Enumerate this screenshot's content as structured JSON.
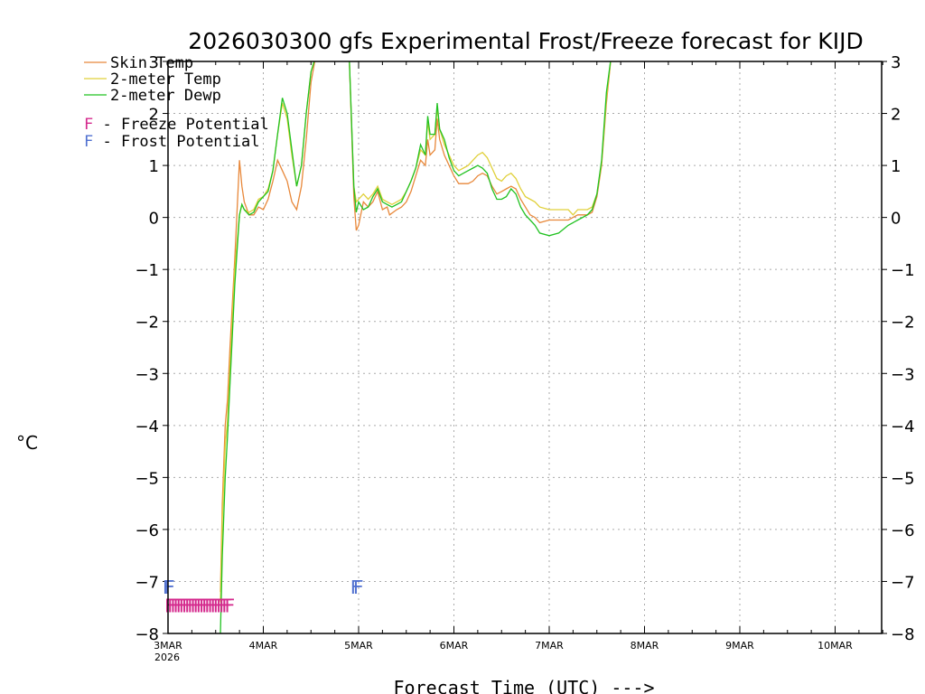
{
  "chart_data": {
    "type": "line",
    "title": "2026030300 gfs Experimental Frost/Freeze forecast for KIJD",
    "ylabel": "°C",
    "xlabel": "Forecast Time (UTC) --->",
    "ylim": [
      -8,
      3
    ],
    "yticks": [
      "−8",
      "−7",
      "−6",
      "−5",
      "−4",
      "−3",
      "−2",
      "−1",
      "0",
      "1",
      "2",
      "3"
    ],
    "xlim_days": [
      0,
      7.5
    ],
    "xtick_labels": [
      "3MAR",
      "4MAR",
      "5MAR",
      "6MAR",
      "7MAR",
      "8MAR",
      "9MAR",
      "10MAR"
    ],
    "x_year_label": "2026",
    "grid": true,
    "series": [
      {
        "name": "Skin Temp",
        "color": "#e8883a",
        "points": [
          [
            0.55,
            -7.2
          ],
          [
            0.57,
            -5.5
          ],
          [
            0.6,
            -4.0
          ],
          [
            0.625,
            -3.5
          ],
          [
            0.65,
            -2.5
          ],
          [
            0.7,
            -0.8
          ],
          [
            0.75,
            1.1
          ],
          [
            0.775,
            0.6
          ],
          [
            0.8,
            0.3
          ],
          [
            0.85,
            0.05
          ],
          [
            0.9,
            0.05
          ],
          [
            0.95,
            0.2
          ],
          [
            1.0,
            0.15
          ],
          [
            1.05,
            0.35
          ],
          [
            1.1,
            0.7
          ],
          [
            1.15,
            1.1
          ],
          [
            1.2,
            0.9
          ],
          [
            1.25,
            0.7
          ],
          [
            1.3,
            0.3
          ],
          [
            1.35,
            0.15
          ],
          [
            1.4,
            0.6
          ],
          [
            1.45,
            1.5
          ],
          [
            1.5,
            2.6
          ],
          [
            1.55,
            3.1
          ],
          [
            1.9,
            3.2
          ],
          [
            1.95,
            0.4
          ],
          [
            1.975,
            -0.25
          ],
          [
            2.0,
            -0.15
          ],
          [
            2.05,
            0.3
          ],
          [
            2.1,
            0.2
          ],
          [
            2.15,
            0.3
          ],
          [
            2.2,
            0.5
          ],
          [
            2.25,
            0.15
          ],
          [
            2.3,
            0.2
          ],
          [
            2.325,
            0.05
          ],
          [
            2.4,
            0.15
          ],
          [
            2.45,
            0.2
          ],
          [
            2.5,
            0.3
          ],
          [
            2.55,
            0.5
          ],
          [
            2.6,
            0.8
          ],
          [
            2.65,
            1.1
          ],
          [
            2.7,
            1.0
          ],
          [
            2.725,
            1.5
          ],
          [
            2.75,
            1.2
          ],
          [
            2.8,
            1.3
          ],
          [
            2.825,
            1.9
          ],
          [
            2.85,
            1.5
          ],
          [
            2.9,
            1.2
          ],
          [
            2.95,
            1.0
          ],
          [
            3.0,
            0.8
          ],
          [
            3.05,
            0.65
          ],
          [
            3.1,
            0.65
          ],
          [
            3.15,
            0.65
          ],
          [
            3.2,
            0.7
          ],
          [
            3.25,
            0.8
          ],
          [
            3.3,
            0.85
          ],
          [
            3.35,
            0.8
          ],
          [
            3.4,
            0.6
          ],
          [
            3.45,
            0.45
          ],
          [
            3.5,
            0.5
          ],
          [
            3.55,
            0.55
          ],
          [
            3.6,
            0.6
          ],
          [
            3.65,
            0.55
          ],
          [
            3.7,
            0.35
          ],
          [
            3.75,
            0.2
          ],
          [
            3.8,
            0.05
          ],
          [
            3.85,
            0.0
          ],
          [
            3.9,
            -0.1
          ],
          [
            4.0,
            -0.05
          ],
          [
            4.1,
            -0.05
          ],
          [
            4.2,
            -0.05
          ],
          [
            4.25,
            0.0
          ],
          [
            4.3,
            0.05
          ],
          [
            4.4,
            0.05
          ],
          [
            4.45,
            0.1
          ],
          [
            4.5,
            0.4
          ],
          [
            4.55,
            1.0
          ],
          [
            4.6,
            2.2
          ],
          [
            4.65,
            3.1
          ]
        ]
      },
      {
        "name": "2-meter Temp",
        "color": "#e0d03a",
        "points": [
          [
            0.55,
            -7.4
          ],
          [
            0.57,
            -5.8
          ],
          [
            0.6,
            -4.4
          ],
          [
            0.625,
            -3.9
          ],
          [
            0.65,
            -2.9
          ],
          [
            0.7,
            -1.0
          ],
          [
            0.75,
            0.05
          ],
          [
            0.775,
            0.25
          ],
          [
            0.8,
            0.15
          ],
          [
            0.85,
            0.1
          ],
          [
            0.9,
            0.15
          ],
          [
            0.95,
            0.35
          ],
          [
            1.0,
            0.4
          ],
          [
            1.05,
            0.55
          ],
          [
            1.1,
            0.9
          ],
          [
            1.15,
            1.6
          ],
          [
            1.2,
            2.2
          ],
          [
            1.25,
            1.9
          ],
          [
            1.3,
            1.2
          ],
          [
            1.35,
            0.6
          ],
          [
            1.4,
            1.0
          ],
          [
            1.45,
            2.0
          ],
          [
            1.5,
            2.8
          ],
          [
            1.55,
            3.1
          ],
          [
            1.9,
            3.2
          ],
          [
            1.95,
            0.6
          ],
          [
            1.975,
            0.3
          ],
          [
            2.0,
            0.35
          ],
          [
            2.05,
            0.45
          ],
          [
            2.1,
            0.35
          ],
          [
            2.15,
            0.45
          ],
          [
            2.2,
            0.6
          ],
          [
            2.25,
            0.35
          ],
          [
            2.3,
            0.3
          ],
          [
            2.35,
            0.25
          ],
          [
            2.4,
            0.3
          ],
          [
            2.45,
            0.35
          ],
          [
            2.5,
            0.5
          ],
          [
            2.55,
            0.7
          ],
          [
            2.6,
            0.95
          ],
          [
            2.65,
            1.3
          ],
          [
            2.7,
            1.2
          ],
          [
            2.725,
            1.85
          ],
          [
            2.75,
            1.5
          ],
          [
            2.8,
            1.6
          ],
          [
            2.825,
            2.1
          ],
          [
            2.85,
            1.7
          ],
          [
            2.9,
            1.4
          ],
          [
            2.95,
            1.2
          ],
          [
            3.0,
            1.0
          ],
          [
            3.05,
            0.9
          ],
          [
            3.1,
            0.95
          ],
          [
            3.15,
            1.0
          ],
          [
            3.2,
            1.1
          ],
          [
            3.25,
            1.2
          ],
          [
            3.3,
            1.25
          ],
          [
            3.35,
            1.15
          ],
          [
            3.4,
            0.95
          ],
          [
            3.45,
            0.75
          ],
          [
            3.5,
            0.7
          ],
          [
            3.55,
            0.8
          ],
          [
            3.6,
            0.85
          ],
          [
            3.65,
            0.75
          ],
          [
            3.7,
            0.55
          ],
          [
            3.75,
            0.4
          ],
          [
            3.8,
            0.35
          ],
          [
            3.85,
            0.3
          ],
          [
            3.9,
            0.2
          ],
          [
            4.0,
            0.15
          ],
          [
            4.1,
            0.15
          ],
          [
            4.2,
            0.15
          ],
          [
            4.25,
            0.05
          ],
          [
            4.3,
            0.15
          ],
          [
            4.4,
            0.15
          ],
          [
            4.45,
            0.2
          ],
          [
            4.5,
            0.45
          ],
          [
            4.55,
            1.05
          ],
          [
            4.6,
            2.3
          ],
          [
            4.65,
            3.1
          ]
        ]
      },
      {
        "name": "2-meter Dewp",
        "color": "#22c222",
        "points": [
          [
            0.55,
            -8.0
          ],
          [
            0.57,
            -6.5
          ],
          [
            0.6,
            -5.0
          ],
          [
            0.625,
            -4.2
          ],
          [
            0.65,
            -3.2
          ],
          [
            0.7,
            -1.3
          ],
          [
            0.75,
            0.05
          ],
          [
            0.775,
            0.25
          ],
          [
            0.8,
            0.15
          ],
          [
            0.85,
            0.05
          ],
          [
            0.9,
            0.1
          ],
          [
            0.95,
            0.3
          ],
          [
            1.0,
            0.4
          ],
          [
            1.05,
            0.5
          ],
          [
            1.1,
            0.9
          ],
          [
            1.15,
            1.6
          ],
          [
            1.2,
            2.3
          ],
          [
            1.25,
            2.0
          ],
          [
            1.3,
            1.3
          ],
          [
            1.35,
            0.6
          ],
          [
            1.4,
            1.0
          ],
          [
            1.45,
            2.0
          ],
          [
            1.5,
            2.8
          ],
          [
            1.55,
            3.1
          ],
          [
            1.9,
            3.2
          ],
          [
            1.95,
            0.6
          ],
          [
            1.975,
            0.1
          ],
          [
            2.0,
            0.3
          ],
          [
            2.05,
            0.15
          ],
          [
            2.1,
            0.2
          ],
          [
            2.15,
            0.4
          ],
          [
            2.2,
            0.55
          ],
          [
            2.25,
            0.3
          ],
          [
            2.3,
            0.25
          ],
          [
            2.35,
            0.2
          ],
          [
            2.4,
            0.25
          ],
          [
            2.45,
            0.3
          ],
          [
            2.5,
            0.5
          ],
          [
            2.55,
            0.7
          ],
          [
            2.6,
            0.95
          ],
          [
            2.65,
            1.4
          ],
          [
            2.7,
            1.2
          ],
          [
            2.725,
            1.95
          ],
          [
            2.75,
            1.6
          ],
          [
            2.8,
            1.6
          ],
          [
            2.825,
            2.2
          ],
          [
            2.85,
            1.7
          ],
          [
            2.9,
            1.5
          ],
          [
            2.95,
            1.15
          ],
          [
            3.0,
            0.9
          ],
          [
            3.05,
            0.8
          ],
          [
            3.1,
            0.85
          ],
          [
            3.15,
            0.9
          ],
          [
            3.2,
            0.95
          ],
          [
            3.25,
            1.0
          ],
          [
            3.3,
            0.95
          ],
          [
            3.35,
            0.85
          ],
          [
            3.4,
            0.55
          ],
          [
            3.45,
            0.35
          ],
          [
            3.5,
            0.35
          ],
          [
            3.55,
            0.4
          ],
          [
            3.6,
            0.55
          ],
          [
            3.65,
            0.45
          ],
          [
            3.7,
            0.2
          ],
          [
            3.75,
            0.05
          ],
          [
            3.8,
            -0.05
          ],
          [
            3.85,
            -0.15
          ],
          [
            3.9,
            -0.3
          ],
          [
            4.0,
            -0.35
          ],
          [
            4.1,
            -0.3
          ],
          [
            4.2,
            -0.15
          ],
          [
            4.25,
            -0.1
          ],
          [
            4.3,
            -0.05
          ],
          [
            4.4,
            0.05
          ],
          [
            4.45,
            0.15
          ],
          [
            4.5,
            0.45
          ],
          [
            4.55,
            1.1
          ],
          [
            4.6,
            2.4
          ],
          [
            4.65,
            3.1
          ]
        ]
      }
    ],
    "markers": {
      "freeze": {
        "symbol": "F",
        "color": "#d4288c",
        "y": -7.45,
        "x_days": [
          0.02,
          0.05,
          0.08,
          0.11,
          0.14,
          0.17,
          0.2,
          0.23,
          0.26,
          0.29,
          0.32,
          0.35,
          0.38,
          0.41,
          0.44,
          0.47,
          0.5,
          0.53,
          0.56,
          0.59,
          0.62,
          0.65
        ]
      },
      "frost": {
        "symbol": "F",
        "color": "#5070d0",
        "y": -7.1,
        "x_days": [
          0.0,
          0.02,
          1.97,
          2.0
        ]
      }
    },
    "legend": [
      {
        "text": "Skin Temp",
        "color": "#e8883a"
      },
      {
        "text": "2-meter Temp",
        "color": "#e0d03a"
      },
      {
        "text": "2-meter Dewp",
        "color": "#22c222"
      }
    ],
    "marker_legend": [
      {
        "symbol": "F",
        "text": " - Freeze Potential",
        "color": "#d4288c"
      },
      {
        "symbol": "F",
        "text": " - Frost Potential",
        "color": "#5070d0"
      }
    ]
  }
}
